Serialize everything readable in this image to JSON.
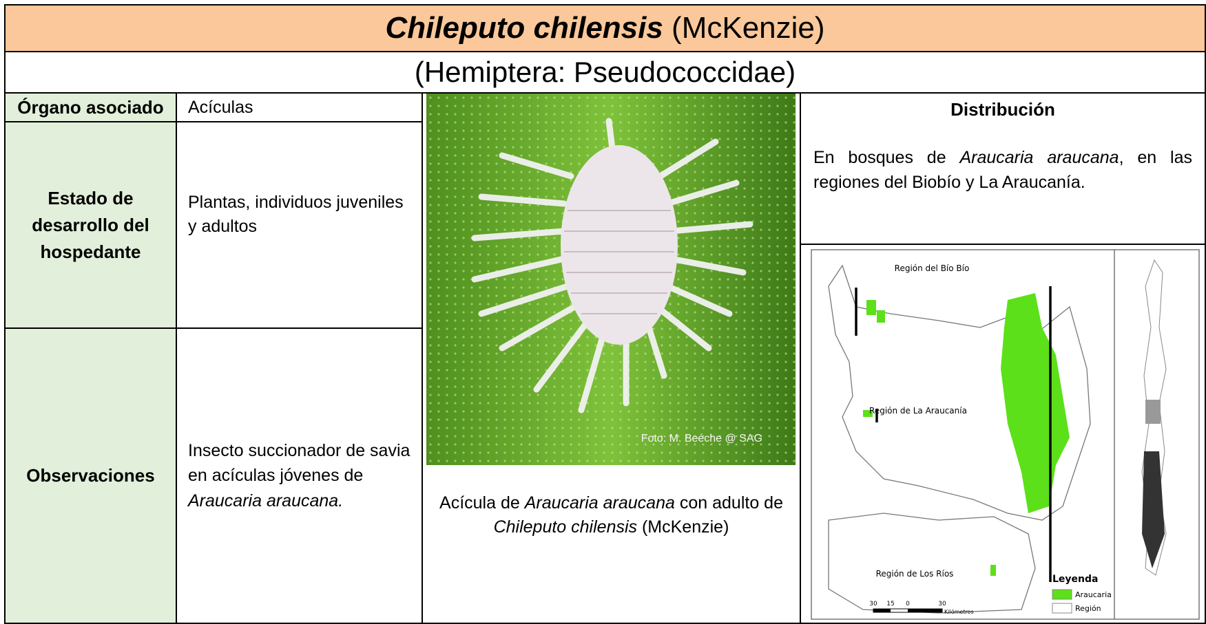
{
  "title": {
    "species": "Chileputo chilensis",
    "author": " (McKenzie)"
  },
  "subtitle": "(Hemiptera: Pseudococcidae)",
  "table": {
    "rows": [
      {
        "label": "Órgano asociado",
        "value": [
          "Acículas"
        ]
      },
      {
        "label": "Estado de desarrollo del hospedante",
        "value": [
          "Plantas, individuos juveniles y adultos"
        ]
      },
      {
        "label": "Observaciones",
        "value": [
          "Insecto succionador de savia en acículas jóvenes de ",
          "Araucaria araucana."
        ]
      }
    ]
  },
  "photo": {
    "credit": "Foto: M. Beéche @ SAG",
    "caption": [
      "Acícula de ",
      "Araucaria araucana",
      " con adulto de ",
      "Chileputo chilensis",
      " (McKenzie)"
    ]
  },
  "distribution": {
    "heading": "Distribución",
    "text": [
      "En bosques de ",
      "Araucaria araucana",
      ", en las regiones del Biobío y La Araucanía."
    ]
  },
  "map": {
    "regions": [
      "Región del Bío Bío",
      "Región de La Araucanía",
      "Región de Los Ríos"
    ],
    "legend": {
      "title": "Leyenda",
      "items": [
        "Araucaria",
        "Región"
      ]
    },
    "scale": {
      "ticks": [
        "30",
        "15",
        "0",
        "30"
      ],
      "unit": "Kilómetros"
    }
  }
}
